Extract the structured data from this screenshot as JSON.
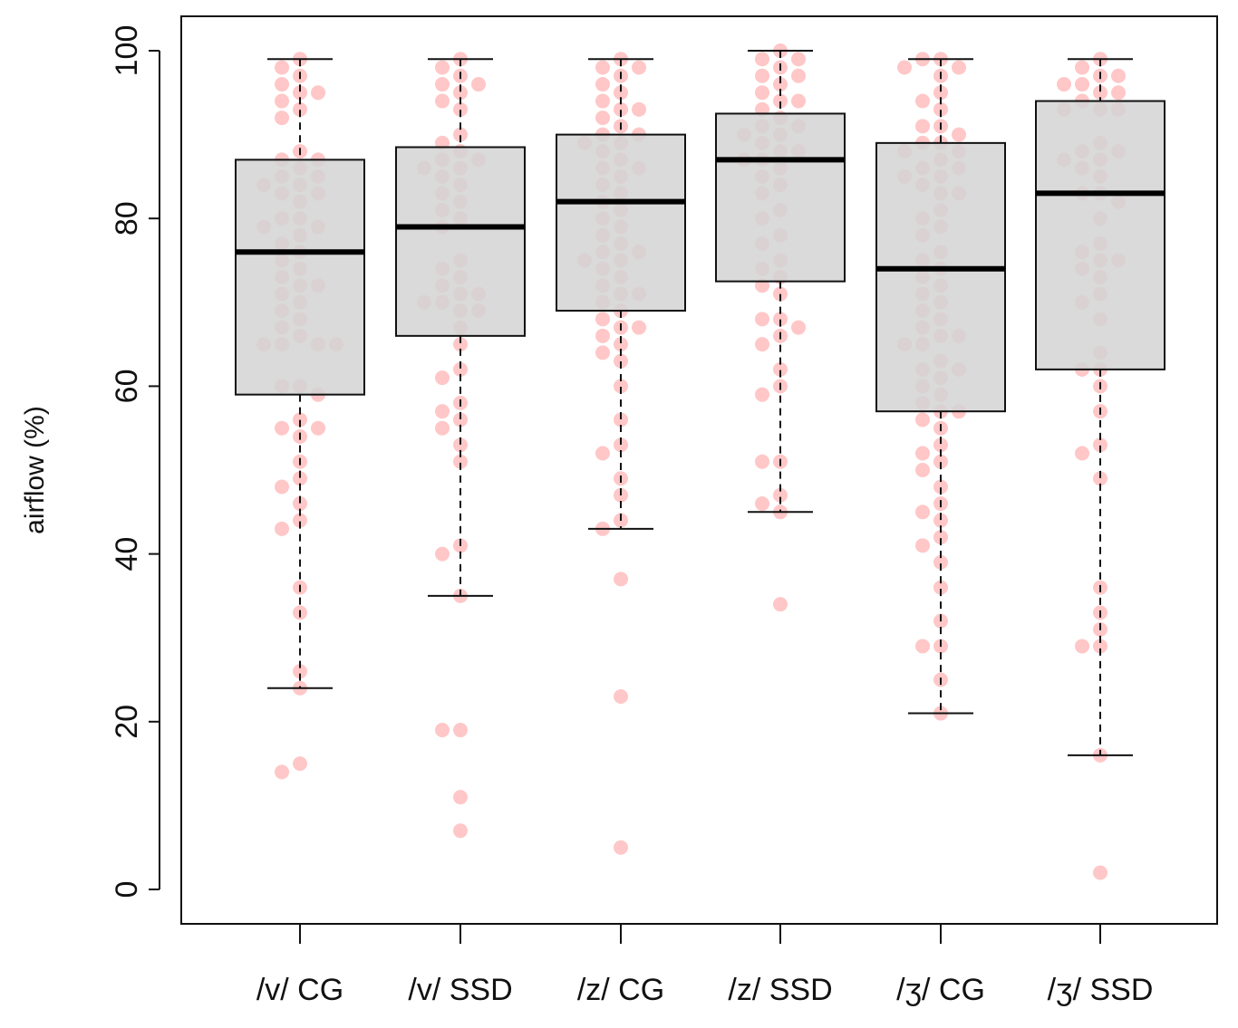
{
  "chart_data": {
    "type": "boxplot",
    "title": "",
    "xlabel": "",
    "ylabel": "airflow (%)",
    "ylim": [
      0,
      100
    ],
    "yticks": [
      0,
      20,
      40,
      60,
      80,
      100
    ],
    "grid": false,
    "box_fill": "#d3d3d3",
    "point_color": "#ff9999",
    "categories": [
      "/v/ CG",
      "/v/ SSD",
      "/z/ CG",
      "/z/ SSD",
      "/ʒ/ CG",
      "/ʒ/ SSD"
    ],
    "boxes": [
      {
        "label": "/v/ CG",
        "whisker_low": 24,
        "q1": 59,
        "median": 76,
        "q3": 87,
        "whisker_high": 99
      },
      {
        "label": "/v/ SSD",
        "whisker_low": 35,
        "q1": 66,
        "median": 79,
        "q3": 88.5,
        "whisker_high": 99
      },
      {
        "label": "/z/ CG",
        "whisker_low": 43,
        "q1": 69,
        "median": 82,
        "q3": 90,
        "whisker_high": 99
      },
      {
        "label": "/z/ SSD",
        "whisker_low": 45,
        "q1": 72.5,
        "median": 87,
        "q3": 92.5,
        "whisker_high": 100
      },
      {
        "label": "/ʒ/ CG",
        "whisker_low": 21,
        "q1": 57,
        "median": 74,
        "q3": 89,
        "whisker_high": 99
      },
      {
        "label": "/ʒ/ SSD",
        "whisker_low": 16,
        "q1": 62,
        "median": 83,
        "q3": 94,
        "whisker_high": 99
      }
    ],
    "points": [
      [
        99,
        98,
        97,
        96,
        95,
        95,
        94,
        93,
        92,
        88,
        87,
        87,
        86,
        85,
        85,
        84,
        84,
        83,
        83,
        82,
        80,
        80,
        79,
        79,
        78,
        77,
        76,
        75,
        74,
        73,
        72,
        72,
        71,
        70,
        69,
        68,
        67,
        66,
        65,
        65,
        65,
        65,
        60,
        60,
        59,
        56,
        55,
        55,
        54,
        51,
        49,
        48,
        46,
        44,
        43,
        36,
        33,
        26,
        24,
        15,
        14
      ],
      [
        99,
        98,
        97,
        96,
        96,
        95,
        94,
        93,
        90,
        89,
        88,
        87,
        87,
        86,
        86,
        85,
        84,
        83,
        82,
        81,
        80,
        79,
        75,
        74,
        73,
        72,
        71,
        71,
        70,
        70,
        69,
        69,
        67,
        65,
        62,
        61,
        58,
        57,
        56,
        55,
        53,
        51,
        41,
        40,
        35,
        19,
        19,
        11,
        7
      ],
      [
        99,
        98,
        98,
        97,
        96,
        95,
        94,
        93,
        93,
        92,
        91,
        90,
        90,
        89,
        89,
        88,
        87,
        86,
        86,
        85,
        84,
        83,
        82,
        81,
        80,
        79,
        78,
        77,
        76,
        76,
        75,
        75,
        74,
        73,
        72,
        71,
        71,
        70,
        69,
        68,
        67,
        67,
        66,
        65,
        64,
        63,
        60,
        56,
        53,
        52,
        49,
        47,
        44,
        43,
        37,
        23,
        5
      ],
      [
        100,
        99,
        99,
        98,
        97,
        97,
        96,
        95,
        94,
        94,
        93,
        92,
        91,
        91,
        90,
        90,
        89,
        88,
        88,
        87,
        87,
        86,
        85,
        84,
        83,
        81,
        80,
        78,
        77,
        75,
        74,
        73,
        72,
        71,
        68,
        68,
        67,
        66,
        65,
        62,
        60,
        59,
        51,
        51,
        47,
        46,
        45,
        34
      ],
      [
        99,
        99,
        98,
        98,
        97,
        95,
        94,
        93,
        91,
        91,
        90,
        89,
        89,
        88,
        88,
        87,
        86,
        86,
        85,
        85,
        84,
        83,
        83,
        81,
        80,
        79,
        78,
        76,
        75,
        74,
        73,
        72,
        71,
        70,
        69,
        68,
        67,
        66,
        66,
        65,
        65,
        63,
        62,
        62,
        61,
        60,
        59,
        58,
        57,
        57,
        56,
        55,
        53,
        52,
        51,
        50,
        48,
        46,
        45,
        44,
        42,
        41,
        39,
        36,
        32,
        29,
        29,
        25,
        21
      ],
      [
        99,
        98,
        97,
        97,
        96,
        96,
        95,
        95,
        94,
        93,
        93,
        93,
        89,
        88,
        88,
        87,
        87,
        86,
        85,
        83,
        83,
        82,
        80,
        77,
        76,
        75,
        75,
        74,
        73,
        71,
        70,
        68,
        64,
        62,
        62,
        60,
        57,
        53,
        52,
        49,
        36,
        33,
        31,
        29,
        29,
        16,
        2
      ]
    ]
  }
}
